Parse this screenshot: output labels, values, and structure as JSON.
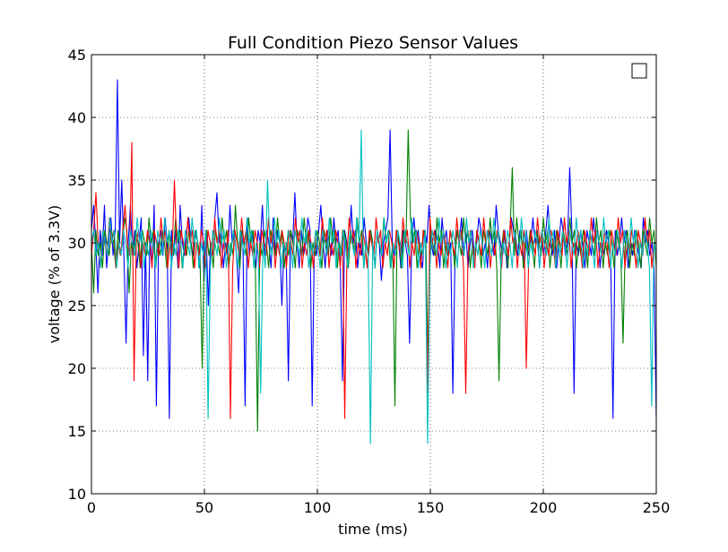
{
  "chart_data": {
    "type": "line",
    "title": "Full Condition Piezo Sensor Values",
    "xlabel": "time (ms)",
    "ylabel": "voltage (% of 3.3V)",
    "xlim": [
      0,
      250
    ],
    "ylim": [
      10,
      45
    ],
    "xticks": [
      "0",
      "50",
      "100",
      "150",
      "200",
      "250"
    ],
    "yticks": [
      "10",
      "15",
      "20",
      "25",
      "30",
      "35",
      "40",
      "45"
    ],
    "grid": true,
    "legend": {
      "placement": "top-right",
      "entries": [
        ""
      ]
    },
    "colors": {
      "blue": "#0000ff",
      "green": "#008000",
      "red": "#ff0000",
      "cyan": "#00bfbf"
    },
    "series": [
      {
        "color": "#0000ff",
        "values": [
          31,
          33,
          30,
          26,
          31,
          29,
          33,
          28,
          30,
          32,
          29,
          31,
          43,
          30,
          35,
          29,
          22,
          30,
          33,
          29,
          31,
          28,
          30,
          32,
          21,
          30,
          19,
          31,
          28,
          33,
          17,
          30,
          31,
          29,
          32,
          30,
          16,
          31,
          29,
          31,
          28,
          33,
          30,
          29,
          31,
          32,
          30,
          29,
          31,
          30,
          28,
          33,
          27,
          31,
          25,
          30,
          29,
          32,
          34,
          30,
          31,
          28,
          30,
          29,
          33,
          30,
          31,
          29,
          26,
          31,
          30,
          17,
          32,
          29,
          31,
          30,
          28,
          31,
          30,
          33,
          29,
          31,
          30,
          28,
          32,
          29,
          31,
          30,
          25,
          30,
          29,
          19,
          31,
          30,
          34,
          30,
          28,
          31,
          29,
          30,
          32,
          31,
          17,
          30,
          29,
          31,
          33,
          30,
          28,
          31,
          30,
          29,
          32,
          30,
          31,
          28,
          19,
          31,
          30,
          29,
          33,
          30,
          31,
          28,
          30,
          29,
          32,
          30,
          29,
          31,
          30,
          28,
          31,
          30,
          27,
          30,
          31,
          32,
          39,
          30,
          29,
          31,
          30,
          28,
          31,
          30,
          29,
          22,
          30,
          32,
          30,
          31,
          29,
          28,
          31,
          30,
          33,
          30,
          29,
          31,
          30,
          28,
          32,
          30,
          31,
          29,
          30,
          18,
          29,
          31,
          30,
          32,
          29,
          31,
          28,
          30,
          31,
          29,
          30,
          32,
          31,
          29,
          30,
          28,
          31,
          30,
          29,
          33,
          31,
          30,
          29,
          31,
          28,
          30,
          32,
          31,
          30,
          29,
          31,
          30,
          28,
          31,
          29,
          30,
          32,
          30,
          31,
          28,
          30,
          29,
          31,
          33,
          30,
          29,
          31,
          28,
          30,
          32,
          31,
          29,
          30,
          36,
          31,
          18,
          30,
          29,
          31,
          30,
          28,
          31,
          30,
          29,
          32,
          30,
          31,
          28,
          30,
          29,
          31,
          30,
          28,
          16,
          31,
          29,
          30,
          32,
          30,
          31,
          28,
          30,
          29,
          31,
          30,
          29,
          28,
          32,
          30,
          31,
          29,
          30,
          28,
          16
        ]
      },
      {
        "color": "#008000",
        "values": [
          30,
          26,
          31,
          29,
          30,
          28,
          31,
          30,
          29,
          31,
          30,
          28,
          31,
          29,
          30,
          32,
          31,
          26,
          30,
          29,
          31,
          30,
          28,
          31,
          30,
          29,
          32,
          30,
          31,
          28,
          30,
          29,
          31,
          30,
          28,
          31,
          30,
          29,
          32,
          30,
          31,
          28,
          30,
          29,
          31,
          30,
          28,
          31,
          30,
          29,
          20,
          30,
          31,
          29,
          30,
          28,
          31,
          30,
          29,
          32,
          30,
          31,
          28,
          30,
          29,
          33,
          30,
          28,
          31,
          30,
          29,
          32,
          30,
          31,
          28,
          15,
          30,
          29,
          31,
          30,
          28,
          31,
          30,
          29,
          32,
          30,
          31,
          28,
          30,
          29,
          31,
          30,
          28,
          31,
          30,
          29,
          32,
          30,
          31,
          28,
          30,
          29,
          31,
          30,
          28,
          31,
          30,
          29,
          32,
          30,
          31,
          28,
          30,
          29,
          31,
          30,
          28,
          31,
          30,
          29,
          32,
          30,
          31,
          28,
          30,
          29,
          31,
          30,
          28,
          31,
          30,
          29,
          32,
          30,
          31,
          28,
          30,
          17,
          31,
          30,
          28,
          31,
          30,
          39,
          32,
          30,
          31,
          28,
          30,
          29,
          31,
          30,
          20,
          31,
          30,
          29,
          32,
          30,
          31,
          28,
          30,
          29,
          31,
          30,
          28,
          31,
          30,
          29,
          32,
          30,
          31,
          28,
          30,
          29,
          31,
          30,
          28,
          31,
          30,
          29,
          32,
          30,
          31,
          28,
          19,
          29,
          31,
          30,
          28,
          31,
          36,
          29,
          32,
          30,
          31,
          28,
          30,
          29,
          31,
          30,
          28,
          31,
          30,
          29,
          32,
          30,
          31,
          28,
          30,
          29,
          31,
          30,
          28,
          31,
          30,
          29,
          32,
          30,
          31,
          28,
          30,
          29,
          31,
          30,
          28,
          31,
          30,
          29,
          32,
          30,
          31,
          28,
          30,
          29,
          31,
          30,
          28,
          31,
          30,
          29,
          22,
          30,
          31,
          28,
          30,
          29,
          31,
          30,
          28,
          31,
          30,
          29,
          32,
          30,
          31,
          28
        ]
      },
      {
        "color": "#ff0000",
        "values": [
          29,
          31,
          34,
          30,
          28,
          31,
          30,
          29,
          32,
          30,
          31,
          28,
          30,
          29,
          31,
          33,
          30,
          29,
          38,
          19,
          30,
          31,
          28,
          30,
          29,
          31,
          30,
          28,
          31,
          30,
          29,
          32,
          30,
          31,
          28,
          30,
          29,
          35,
          30,
          28,
          31,
          30,
          29,
          32,
          30,
          31,
          28,
          30,
          29,
          31,
          30,
          28,
          31,
          30,
          29,
          32,
          30,
          31,
          28,
          30,
          29,
          31,
          16,
          28,
          31,
          30,
          29,
          32,
          30,
          31,
          28,
          30,
          29,
          31,
          30,
          28,
          31,
          30,
          29,
          32,
          30,
          31,
          28,
          30,
          29,
          31,
          30,
          28,
          31,
          30,
          29,
          32,
          30,
          31,
          28,
          30,
          29,
          31,
          30,
          28,
          31,
          30,
          29,
          32,
          30,
          31,
          28,
          30,
          29,
          31,
          30,
          28,
          31,
          16,
          29,
          32,
          30,
          31,
          28,
          30,
          29,
          31,
          30,
          28,
          31,
          30,
          29,
          32,
          30,
          31,
          28,
          30,
          29,
          31,
          30,
          28,
          31,
          30,
          29,
          32,
          30,
          31,
          28,
          30,
          29,
          31,
          30,
          28,
          31,
          30,
          18,
          32,
          30,
          31,
          28,
          30,
          29,
          31,
          30,
          28,
          31,
          30,
          29,
          32,
          30,
          31,
          28,
          18,
          29,
          31,
          30,
          28,
          31,
          30,
          29,
          32,
          30,
          31,
          28,
          30,
          29,
          31,
          30,
          28,
          31,
          30,
          29,
          32,
          30,
          31,
          28,
          30,
          29,
          31,
          20,
          28,
          31,
          30,
          29,
          32,
          30,
          31,
          28,
          30,
          29,
          31,
          30,
          28,
          31,
          30,
          29,
          32,
          30,
          31,
          28,
          30,
          29,
          31,
          30,
          28,
          31,
          30,
          29,
          32,
          30,
          31,
          28,
          30,
          29,
          31,
          30,
          28,
          31,
          30,
          29,
          32,
          30,
          31,
          28,
          30,
          29,
          31,
          30,
          28,
          31,
          30,
          29,
          32,
          30,
          31,
          28,
          30,
          29
        ]
      },
      {
        "color": "#00bfbf",
        "values": [
          30,
          31,
          29,
          30,
          28,
          31,
          30,
          29,
          32,
          30,
          31,
          28,
          30,
          29,
          31,
          30,
          28,
          31,
          30,
          29,
          32,
          30,
          31,
          28,
          30,
          29,
          31,
          30,
          28,
          31,
          30,
          29,
          32,
          30,
          31,
          28,
          30,
          29,
          31,
          30,
          28,
          31,
          30,
          29,
          32,
          30,
          31,
          28,
          30,
          29,
          31,
          16,
          28,
          31,
          30,
          29,
          32,
          30,
          31,
          28,
          30,
          29,
          31,
          30,
          28,
          31,
          30,
          29,
          32,
          30,
          31,
          28,
          30,
          29,
          18,
          30,
          28,
          35,
          30,
          29,
          32,
          30,
          31,
          28,
          30,
          29,
          31,
          30,
          28,
          31,
          30,
          29,
          32,
          30,
          31,
          28,
          30,
          29,
          31,
          30,
          28,
          31,
          30,
          29,
          32,
          30,
          31,
          28,
          30,
          29,
          31,
          30,
          28,
          31,
          30,
          29,
          32,
          30,
          39,
          28,
          30,
          29,
          14,
          30,
          28,
          31,
          30,
          29,
          32,
          30,
          31,
          28,
          30,
          29,
          31,
          30,
          28,
          31,
          30,
          29,
          32,
          30,
          31,
          28,
          30,
          29,
          31,
          14,
          28,
          31,
          30,
          29,
          32,
          30,
          31,
          28,
          30,
          29,
          31,
          30,
          28,
          31,
          30,
          29,
          32,
          30,
          31,
          28,
          30,
          29,
          31,
          30,
          28,
          31,
          30,
          29,
          32,
          30,
          31,
          28,
          30,
          29,
          31,
          30,
          28,
          31,
          30,
          29,
          32,
          30,
          31,
          28,
          30,
          29,
          31,
          30,
          28,
          31,
          30,
          29,
          32,
          30,
          31,
          28,
          30,
          29,
          31,
          30,
          28,
          31,
          30,
          29,
          32,
          30,
          31,
          28,
          30,
          29,
          31,
          30,
          28,
          31,
          30,
          29,
          32,
          30,
          31,
          28,
          30,
          29,
          31,
          30,
          28,
          31,
          30,
          29,
          32,
          30,
          31,
          28,
          30,
          29,
          31,
          30,
          28,
          17,
          30,
          29
        ]
      }
    ]
  }
}
